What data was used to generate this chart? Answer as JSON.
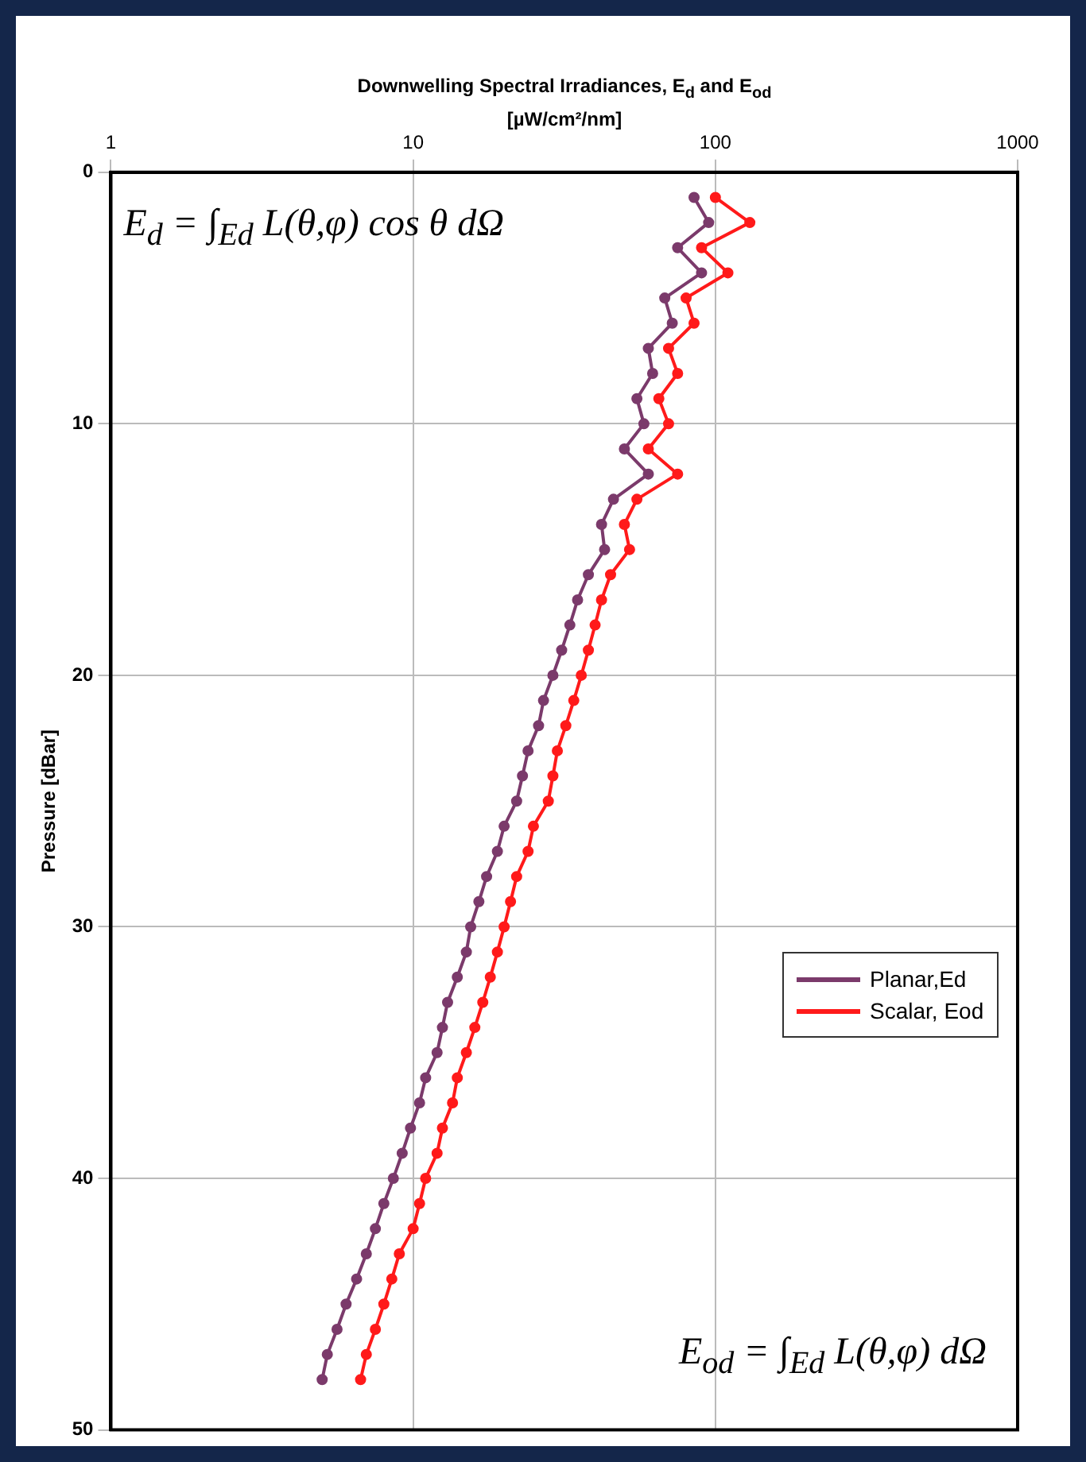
{
  "chart_data": {
    "type": "line",
    "xlabel": "Downwelling Spectral Irradiances, E$_{d}$ and E$_{od}$ [µW/cm²/nm]",
    "ylabel": "Pressure [dBar]",
    "log": "x",
    "xlim": [
      1,
      1000
    ],
    "xticks": [
      1,
      10,
      100,
      1000
    ],
    "ylim": [
      50,
      0
    ],
    "yticks": [
      0,
      10,
      20,
      30,
      40,
      50
    ],
    "grid": true,
    "legend": "right",
    "marker": "circle",
    "line_style": "solid",
    "annotations": [
      "E$_{d}$ = ∫$_{Ed}$ L(θ,φ) cos θ dΩ",
      "E$_{od}$ = ∫$_{Ed}$ L(θ,φ) dΩ"
    ],
    "series": [
      {
        "name": "Planar,Ed",
        "color": "#7b3a6b",
        "x": [
          85,
          95,
          75,
          90,
          68,
          72,
          60,
          62,
          55,
          58,
          50,
          60,
          46,
          42,
          43,
          38,
          35,
          33,
          31,
          29,
          27,
          26,
          24,
          23,
          22,
          20,
          19,
          17.5,
          16.5,
          15.5,
          15,
          14,
          13,
          12.5,
          12,
          11,
          10.5,
          9.8,
          9.2,
          8.6,
          8,
          7.5,
          7,
          6.5,
          6,
          5.6,
          5.2,
          5
        ],
        "values": [
          1,
          2,
          3,
          4,
          5,
          6,
          7,
          8,
          9,
          10,
          11,
          12,
          13,
          14,
          15,
          16,
          17,
          18,
          19,
          20,
          21,
          22,
          23,
          24,
          25,
          26,
          27,
          28,
          29,
          30,
          31,
          32,
          33,
          34,
          35,
          36,
          37,
          38,
          39,
          40,
          41,
          42,
          43,
          44,
          45,
          46,
          47,
          48
        ]
      },
      {
        "name": "Scalar, Eod",
        "color": "#ff1a1a",
        "x": [
          100,
          130,
          90,
          110,
          80,
          85,
          70,
          75,
          65,
          70,
          60,
          75,
          55,
          50,
          52,
          45,
          42,
          40,
          38,
          36,
          34,
          32,
          30,
          29,
          28,
          25,
          24,
          22,
          21,
          20,
          19,
          18,
          17,
          16,
          15,
          14,
          13.5,
          12.5,
          12,
          11,
          10.5,
          10,
          9,
          8.5,
          8,
          7.5,
          7,
          6.7
        ],
        "values": [
          1,
          2,
          3,
          4,
          5,
          6,
          7,
          8,
          9,
          10,
          11,
          12,
          13,
          14,
          15,
          16,
          17,
          18,
          19,
          20,
          21,
          22,
          23,
          24,
          25,
          26,
          27,
          28,
          29,
          30,
          31,
          32,
          33,
          34,
          35,
          36,
          37,
          38,
          39,
          40,
          41,
          42,
          43,
          44,
          45,
          46,
          47,
          48
        ]
      }
    ]
  }
}
